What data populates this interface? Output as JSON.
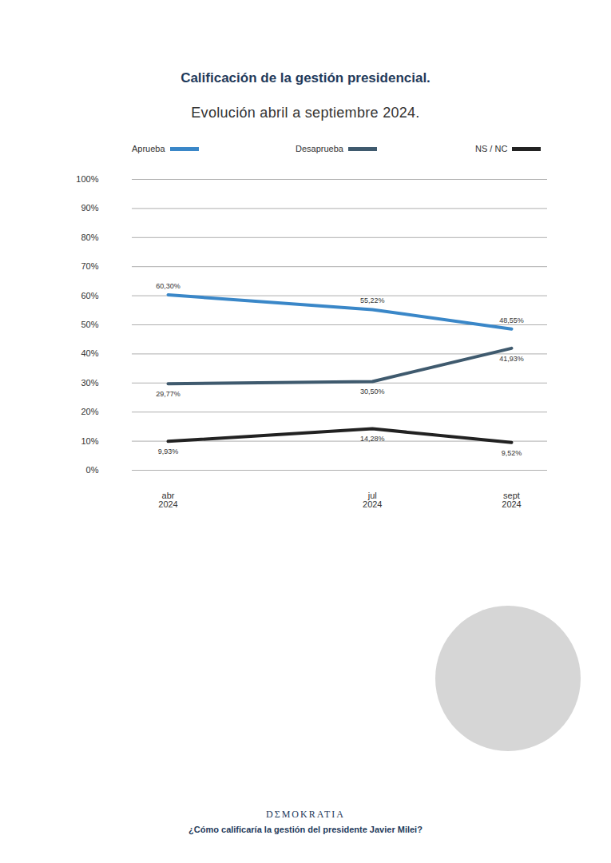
{
  "chart_data": {
    "type": "line",
    "title": "Calificación de la gestión presidencial.",
    "subtitle": "Evolución abril a septiembre 2024.",
    "source": "DΣMOKRATIA",
    "caption": "¿Cómo calificaría la gestión del presidente Javier Milei?",
    "x": [
      "2024-04",
      "2024-07",
      "2024-09"
    ],
    "xlim": [
      "2024-04",
      "2024-09"
    ],
    "xticks": [
      {
        "value": "2024-04",
        "label": "abr 2024"
      },
      {
        "value": "2024-07",
        "label": "jul 2024"
      },
      {
        "value": "2024-09",
        "label": "sept 2024"
      }
    ],
    "ylim": [
      0,
      100
    ],
    "yticks": [
      {
        "value": 0,
        "label": "0%"
      },
      {
        "value": 10,
        "label": "10%"
      },
      {
        "value": 20,
        "label": "20%"
      },
      {
        "value": 30,
        "label": "30%"
      },
      {
        "value": 40,
        "label": "40%"
      },
      {
        "value": 50,
        "label": "50%"
      },
      {
        "value": 60,
        "label": "60%"
      },
      {
        "value": 70,
        "label": "70%"
      },
      {
        "value": 80,
        "label": "80%"
      },
      {
        "value": 90,
        "label": "90%"
      },
      {
        "value": 100,
        "label": "100%"
      }
    ],
    "grid": true,
    "legend": "top",
    "data_labels": true,
    "series": [
      {
        "name": "Aprueba",
        "color": "#3a87c8",
        "values": [
          60.3,
          55.22,
          48.55
        ],
        "value_labels": [
          "60,30%",
          "55,22%",
          "48,55%"
        ]
      },
      {
        "name": "Desaprueba",
        "color": "#3f5a6e",
        "values": [
          29.77,
          30.5,
          41.93
        ],
        "value_labels": [
          "29,77%",
          "30,50%",
          "41,93%"
        ]
      },
      {
        "name": "NS / NC",
        "color": "#222222",
        "values": [
          9.93,
          14.28,
          9.52
        ],
        "value_labels": [
          "9,93%",
          "14,28%",
          "9,52%"
        ]
      }
    ]
  }
}
